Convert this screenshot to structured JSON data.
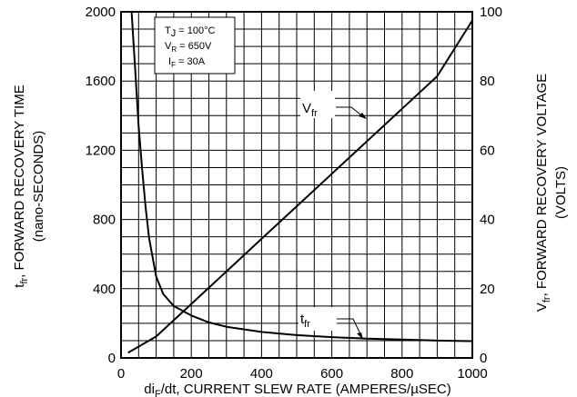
{
  "chart_data": {
    "type": "line",
    "x_axis": {
      "label_main": "di",
      "label_sub": "F",
      "label_rest": "/dt, CURRENT SLEW RATE (AMPERES/µSEC)",
      "range": [
        0,
        1000
      ],
      "ticks": [
        0,
        200,
        400,
        600,
        800,
        1000
      ],
      "tick_labels": [
        "0",
        "200",
        "400",
        "600",
        "800",
        "1000"
      ]
    },
    "y_left": {
      "label_main": "t",
      "label_sub": "fr",
      "label_rest": ", FORWARD RECOVERY TIME",
      "label_line2": "(nano-SECONDS)",
      "range": [
        0,
        2000
      ],
      "ticks": [
        0,
        400,
        800,
        1200,
        1600,
        2000
      ],
      "tick_labels": [
        "0",
        "400",
        "800",
        "1200",
        "1600",
        "2000"
      ]
    },
    "y_right": {
      "label_main": "V",
      "label_sub": "fr",
      "label_rest": ", FORWARD RECOVERY VOLTAGE",
      "label_line2": "(VOLTS)",
      "range": [
        0,
        100
      ],
      "ticks": [
        0,
        20,
        40,
        60,
        80,
        100
      ],
      "tick_labels": [
        "0",
        "20",
        "40",
        "60",
        "80",
        "100"
      ]
    },
    "grid": true,
    "grid_x_step": 50,
    "grid_y_step": 100,
    "conditions": [
      {
        "main": "T",
        "sub": "J",
        "rest": " = 100°C"
      },
      {
        "main": "V",
        "sub": "R",
        "rest": " = 650V"
      },
      {
        "main": "I",
        "sub": "F",
        "rest": " = 30A"
      }
    ],
    "series": [
      {
        "name_main": "V",
        "name_sub": "fr",
        "axis": "right",
        "x": [
          20,
          100,
          200,
          300,
          400,
          500,
          600,
          700,
          800,
          900,
          1000
        ],
        "y": [
          1.5,
          6.2,
          15.6,
          25.0,
          34.4,
          43.8,
          53.2,
          62.6,
          72.0,
          81.4,
          97.5
        ]
      },
      {
        "name_main": "t",
        "name_sub": "fr",
        "axis": "left",
        "x": [
          30,
          40,
          50,
          60,
          70,
          80,
          100,
          120,
          150,
          200,
          250,
          300,
          400,
          500,
          600,
          700,
          800,
          900,
          1000
        ],
        "y": [
          2000,
          1680,
          1340,
          1090,
          870,
          690,
          470,
          370,
          300,
          245,
          205,
          180,
          150,
          132,
          120,
          112,
          106,
          100,
          97
        ]
      }
    ]
  }
}
